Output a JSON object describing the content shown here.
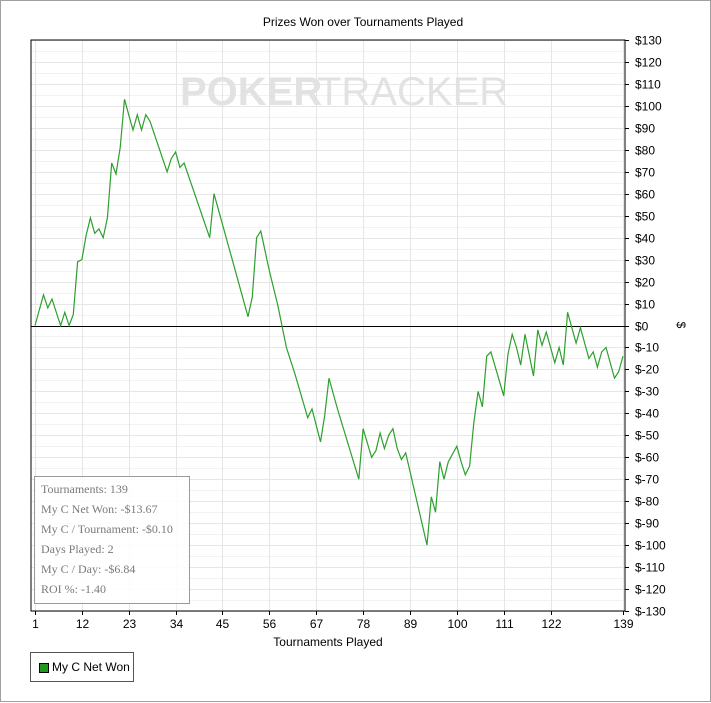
{
  "colors": {
    "line": "#2ca02c",
    "grid": "#e6e6e6",
    "zero": "#000000",
    "watermark": "#e2e2e2"
  },
  "watermark": {
    "text_left": "POKER",
    "text_right": "TRACKER"
  },
  "stats": {
    "tournaments": "Tournaments: 139",
    "net_won": "My C Net Won: -$13.67",
    "per_tournament": "My C / Tournament: -$0.10",
    "days_played": "Days Played: 2",
    "per_day": "My C / Day: -$6.84",
    "roi": "ROI %: -1.40"
  },
  "legend": {
    "label": "My C Net Won",
    "swatch_color": "#1f9a1f"
  },
  "chart_data": {
    "type": "line",
    "title": "Prizes Won over Tournaments Played",
    "xlabel": "Tournaments Played",
    "ylabel": "$",
    "xlim": [
      1,
      139
    ],
    "ylim": [
      -130,
      130
    ],
    "x_ticks": [
      1,
      12,
      23,
      34,
      45,
      56,
      67,
      78,
      89,
      100,
      111,
      122,
      139
    ],
    "y_ticks": [
      130,
      120,
      110,
      100,
      90,
      80,
      70,
      60,
      50,
      40,
      30,
      20,
      10,
      0,
      -10,
      -20,
      -30,
      -40,
      -50,
      -60,
      -70,
      -80,
      -90,
      -100,
      -110,
      -120,
      -130
    ],
    "y_tick_labels": [
      "$130",
      "$120",
      "$110",
      "$100",
      "$90",
      "$80",
      "$70",
      "$60",
      "$50",
      "$40",
      "$30",
      "$20",
      "$10",
      "$0",
      "$-10",
      "$-20",
      "$-30",
      "$-40",
      "$-50",
      "$-60",
      "$-70",
      "$-80",
      "$-90",
      "$-100",
      "$-110",
      "$-120",
      "$-130"
    ],
    "grid": true,
    "legend_position": "bottom-left",
    "series": [
      {
        "name": "My C Net Won",
        "points": [
          [
            1,
            0
          ],
          [
            3,
            14
          ],
          [
            4,
            8
          ],
          [
            5,
            12
          ],
          [
            7,
            0
          ],
          [
            8,
            6
          ],
          [
            9,
            0
          ],
          [
            10,
            5
          ],
          [
            11,
            29
          ],
          [
            12,
            30
          ],
          [
            13,
            41
          ],
          [
            14,
            49
          ],
          [
            15,
            42
          ],
          [
            16,
            44
          ],
          [
            17,
            40
          ],
          [
            18,
            49
          ],
          [
            19,
            74
          ],
          [
            20,
            69
          ],
          [
            21,
            81
          ],
          [
            22,
            103
          ],
          [
            23,
            96
          ],
          [
            24,
            89
          ],
          [
            25,
            96
          ],
          [
            26,
            89
          ],
          [
            27,
            96
          ],
          [
            28,
            93
          ],
          [
            32,
            70
          ],
          [
            33,
            76
          ],
          [
            34,
            79
          ],
          [
            35,
            72
          ],
          [
            36,
            74
          ],
          [
            42,
            40
          ],
          [
            43,
            60
          ],
          [
            51,
            4
          ],
          [
            52,
            13
          ],
          [
            53,
            40
          ],
          [
            54,
            43
          ],
          [
            56,
            25
          ],
          [
            58,
            9
          ],
          [
            60,
            -10
          ],
          [
            62,
            -22
          ],
          [
            65,
            -42
          ],
          [
            66,
            -38
          ],
          [
            68,
            -53
          ],
          [
            69,
            -41
          ],
          [
            70,
            -24
          ],
          [
            72,
            -38
          ],
          [
            77,
            -70
          ],
          [
            78,
            -47
          ],
          [
            80,
            -60
          ],
          [
            81,
            -57
          ],
          [
            82,
            -49
          ],
          [
            83,
            -56
          ],
          [
            84,
            -50
          ],
          [
            85,
            -47
          ],
          [
            86,
            -56
          ],
          [
            87,
            -61
          ],
          [
            88,
            -58
          ],
          [
            93,
            -100
          ],
          [
            94,
            -78
          ],
          [
            95,
            -85
          ],
          [
            96,
            -62
          ],
          [
            97,
            -70
          ],
          [
            98,
            -62
          ],
          [
            100,
            -55
          ],
          [
            101,
            -62
          ],
          [
            102,
            -68
          ],
          [
            103,
            -64
          ],
          [
            104,
            -44
          ],
          [
            105,
            -30
          ],
          [
            106,
            -37
          ],
          [
            107,
            -14
          ],
          [
            108,
            -12
          ],
          [
            111,
            -32
          ],
          [
            112,
            -13
          ],
          [
            113,
            -4
          ],
          [
            114,
            -10
          ],
          [
            115,
            -18
          ],
          [
            116,
            -4
          ],
          [
            118,
            -23
          ],
          [
            119,
            -2
          ],
          [
            120,
            -9
          ],
          [
            121,
            -3
          ],
          [
            123,
            -17
          ],
          [
            124,
            -10
          ],
          [
            125,
            -18
          ],
          [
            126,
            6
          ],
          [
            128,
            -8
          ],
          [
            129,
            -1
          ],
          [
            131,
            -15
          ],
          [
            132,
            -12
          ],
          [
            133,
            -19
          ],
          [
            134,
            -12
          ],
          [
            135,
            -10
          ],
          [
            137,
            -24
          ],
          [
            138,
            -21
          ],
          [
            139,
            -14
          ]
        ]
      }
    ]
  }
}
